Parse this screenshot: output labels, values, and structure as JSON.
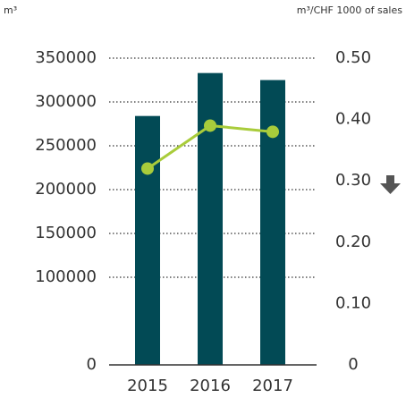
{
  "chart_data": {
    "type": "bar_line",
    "y_label": "m³",
    "y2_label": "m³/CHF 1000 of sales",
    "categories": [
      "2015",
      "2016",
      "2017"
    ],
    "series": [
      {
        "name": "m³",
        "type": "bar",
        "color": "#024a55",
        "values": [
          284000,
          333000,
          325000
        ]
      },
      {
        "name": "m³/CHF 1000 of sales",
        "type": "line",
        "axis": "y2",
        "color": "#a9cc3b",
        "values": [
          0.32,
          0.39,
          0.38
        ]
      }
    ],
    "ylim": [
      0,
      350000
    ],
    "yticks": [
      0,
      100000,
      150000,
      200000,
      250000,
      300000,
      350000
    ],
    "y2lim": [
      0,
      0.5
    ],
    "y2ticks": [
      0,
      {
        "value": 0.1,
        "label": "0.10"
      },
      {
        "value": 0.2,
        "label": "0.20"
      },
      {
        "value": 0.3,
        "label": "0.30"
      },
      {
        "value": 0.4,
        "label": "0.40"
      },
      {
        "value": 0.5,
        "label": "0.50"
      }
    ],
    "grid": true
  }
}
